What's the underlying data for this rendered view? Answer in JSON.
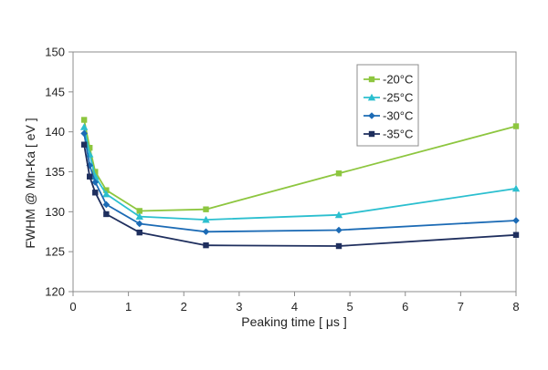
{
  "chart_data": {
    "type": "line",
    "title": "",
    "xlabel": "Peaking time [ μs ]",
    "ylabel": "FWHM @ Mn-Ka  [ eV ]",
    "xlim": [
      0,
      8
    ],
    "ylim": [
      120,
      150
    ],
    "x_ticks": [
      0,
      1,
      2,
      3,
      4,
      5,
      6,
      7,
      8
    ],
    "y_ticks": [
      120,
      125,
      130,
      135,
      140,
      145,
      150
    ],
    "grid": false,
    "legend_position": "top-right",
    "series": [
      {
        "name": "-20°C",
        "color": "#8dc63f",
        "marker": "square",
        "x": [
          0.2,
          0.3,
          0.4,
          0.6,
          1.2,
          2.4,
          4.8,
          8.0
        ],
        "values": [
          141.5,
          138.0,
          135.0,
          132.7,
          130.1,
          130.3,
          134.8,
          140.7
        ]
      },
      {
        "name": "-25°C",
        "color": "#2bbfcf",
        "marker": "triangle",
        "x": [
          0.2,
          0.3,
          0.4,
          0.6,
          1.2,
          2.4,
          4.8,
          8.0
        ],
        "values": [
          140.6,
          137.2,
          134.4,
          132.2,
          129.4,
          129.0,
          129.6,
          132.9
        ]
      },
      {
        "name": "-30°C",
        "color": "#1c6bb5",
        "marker": "diamond",
        "x": [
          0.2,
          0.3,
          0.4,
          0.6,
          1.2,
          2.4,
          4.8,
          8.0
        ],
        "values": [
          139.8,
          135.8,
          133.7,
          130.9,
          128.5,
          127.5,
          127.7,
          128.9
        ]
      },
      {
        "name": "-35°C",
        "color": "#1f2f5e",
        "marker": "square",
        "x": [
          0.2,
          0.3,
          0.4,
          0.6,
          1.2,
          2.4,
          4.8,
          8.0
        ],
        "values": [
          138.4,
          134.4,
          132.4,
          129.7,
          127.4,
          125.8,
          125.7,
          127.1
        ]
      }
    ]
  }
}
